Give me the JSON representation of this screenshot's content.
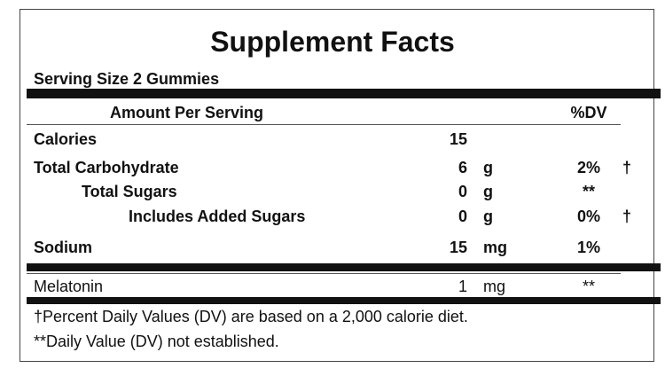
{
  "title": "Supplement Facts",
  "serving_size": "Serving Size 2 Gummies",
  "header": {
    "amount": "Amount Per Serving",
    "dv": "%DV"
  },
  "rows": [
    {
      "name": "Calories",
      "amount": "15"
    },
    {
      "name": "Total Carbohydrate",
      "amount": "6",
      "unit": "g",
      "dv": "2%",
      "mark": "†"
    },
    {
      "name": "Total Sugars",
      "amount": "0",
      "unit": "g",
      "dv": "**"
    },
    {
      "name": "Includes Added Sugars",
      "amount": "0",
      "unit": "g",
      "dv": "0%",
      "mark": "†"
    },
    {
      "name": "Sodium",
      "amount": "15",
      "unit": "mg",
      "dv": "1%"
    }
  ],
  "other": [
    {
      "name": "Melatonin",
      "amount": "1",
      "unit": "mg",
      "dv": "**"
    }
  ],
  "footnotes": [
    "†Percent Daily Values (DV) are based on a 2,000 calorie diet.",
    "**Daily Value (DV) not established."
  ]
}
